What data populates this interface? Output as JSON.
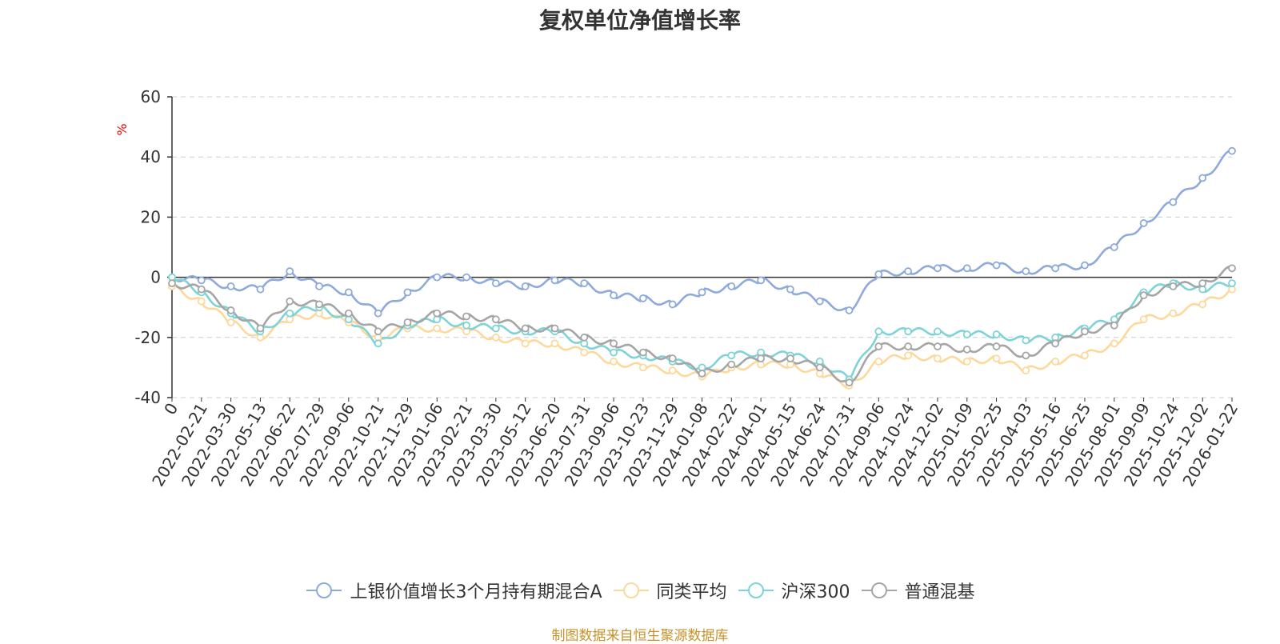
{
  "chart_data": {
    "type": "line",
    "title": "复权单位净值增长率",
    "ylabel": "%",
    "ylim": [
      -40,
      60
    ],
    "yticks": [
      60,
      40,
      20,
      0,
      -20,
      -40
    ],
    "categories": [
      "0",
      "2022-02-21",
      "2022-03-30",
      "2022-05-13",
      "2022-06-22",
      "2022-07-29",
      "2022-09-06",
      "2022-10-21",
      "2022-11-29",
      "2023-01-06",
      "2023-02-21",
      "2023-03-30",
      "2023-05-12",
      "2023-06-20",
      "2023-07-31",
      "2023-09-06",
      "2023-10-23",
      "2023-11-29",
      "2024-01-08",
      "2024-02-22",
      "2024-04-01",
      "2024-05-15",
      "2024-06-24",
      "2024-07-31",
      "2024-09-06",
      "2024-10-24",
      "2024-12-02",
      "2025-01-09",
      "2025-02-25",
      "2025-04-03",
      "2025-05-16",
      "2025-06-25",
      "2025-08-01",
      "2025-09-09",
      "2025-10-24",
      "2025-12-02",
      "2026-01-22"
    ],
    "series": [
      {
        "name": "上银价值增长3个月持有期混合A",
        "color": "#8eaadb",
        "values": [
          0,
          -1,
          -3,
          -4,
          2,
          -3,
          -5,
          -12,
          -5,
          0,
          0,
          -2,
          -3,
          -1,
          -2,
          -6,
          -7,
          -9,
          -5,
          -3,
          -1,
          -4,
          -8,
          -11,
          1,
          2,
          3,
          3,
          4,
          2,
          3,
          4,
          10,
          18,
          25,
          33,
          42
        ]
      },
      {
        "name": "同类平均",
        "color": "#fdd89b",
        "values": [
          -3,
          -8,
          -15,
          -20,
          -14,
          -12,
          -15,
          -20,
          -17,
          -17,
          -18,
          -20,
          -22,
          -22,
          -25,
          -28,
          -30,
          -31,
          -33,
          -30,
          -29,
          -29,
          -32,
          -36,
          -28,
          -26,
          -27,
          -28,
          -27,
          -31,
          -28,
          -26,
          -22,
          -14,
          -12,
          -9,
          -4
        ]
      },
      {
        "name": "沪深300",
        "color": "#7dd3d6",
        "values": [
          0,
          -5,
          -12,
          -18,
          -12,
          -10,
          -14,
          -22,
          -16,
          -14,
          -16,
          -17,
          -18,
          -18,
          -22,
          -25,
          -26,
          -28,
          -30,
          -26,
          -25,
          -26,
          -28,
          -34,
          -18,
          -18,
          -18,
          -19,
          -19,
          -21,
          -20,
          -17,
          -14,
          -5,
          -2,
          -4,
          -2
        ]
      },
      {
        "name": "普通混基",
        "color": "#a5a5a5",
        "values": [
          -2,
          -4,
          -11,
          -17,
          -8,
          -9,
          -12,
          -18,
          -15,
          -12,
          -13,
          -14,
          -17,
          -17,
          -20,
          -22,
          -25,
          -27,
          -32,
          -29,
          -27,
          -27,
          -30,
          -35,
          -23,
          -23,
          -23,
          -24,
          -23,
          -26,
          -22,
          -18,
          -16,
          -6,
          -3,
          -2,
          3
        ]
      }
    ],
    "grid": true,
    "legend": "bottom"
  },
  "source_note": "制图数据来自恒生聚源数据库"
}
